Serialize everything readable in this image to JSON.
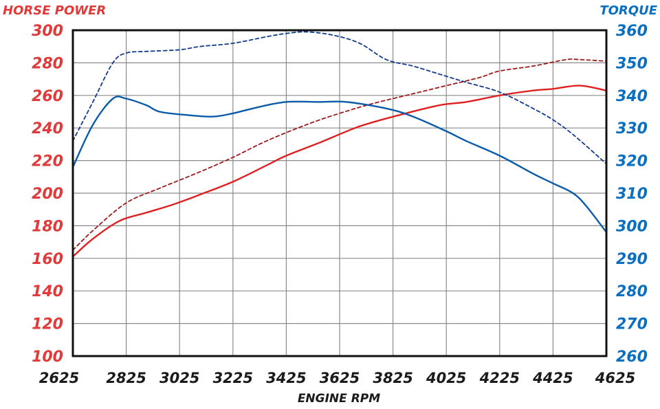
{
  "chart_data": {
    "type": "line",
    "left_axis_title": "HORSE POWER",
    "right_axis_title": "TORQUE",
    "xlabel": "ENGINE RPM",
    "x_ticks": [
      "2625",
      "2825",
      "3025",
      "3225",
      "3425",
      "3625",
      "3825",
      "4025",
      "4225",
      "4425",
      "4625"
    ],
    "x_range": [
      2625,
      4625
    ],
    "left_ticks": [
      "300",
      "280",
      "260",
      "240",
      "220",
      "200",
      "180",
      "160",
      "140",
      "120",
      "100"
    ],
    "left_range": [
      100,
      300
    ],
    "right_ticks": [
      "360",
      "350",
      "340",
      "330",
      "320",
      "310",
      "300",
      "290",
      "280",
      "270",
      "260"
    ],
    "right_range": [
      260,
      360
    ],
    "grid": true,
    "colors": {
      "horsepower": "#e02020",
      "horsepower_dashed": "#9c1818",
      "torque": "#0a5aaa",
      "torque_dashed": "#103a8c",
      "left_axis_text": "#e03a3a",
      "right_axis_text": "#0a6fc0"
    },
    "series": [
      {
        "axis": "left",
        "dashed": false,
        "color_key": "horsepower",
        "x": [
          2625,
          2700,
          2800,
          2900,
          3000,
          3100,
          3225,
          3350,
          3425,
          3550,
          3700,
          3850,
          4000,
          4100,
          4225,
          4350,
          4425,
          4525,
          4625
        ],
        "y": [
          161,
          172,
          183,
          188,
          193,
          199,
          207,
          217,
          223,
          231,
          241,
          248,
          254,
          256,
          260,
          263,
          264,
          266,
          263
        ]
      },
      {
        "axis": "left",
        "dashed": true,
        "color_key": "horsepower_dashed",
        "x": [
          2625,
          2700,
          2825,
          2950,
          3100,
          3225,
          3350,
          3500,
          3625,
          3750,
          3900,
          4025,
          4150,
          4225,
          4350,
          4475,
          4525,
          4625
        ],
        "y": [
          165,
          177,
          194,
          203,
          213,
          222,
          232,
          242,
          249,
          255,
          261,
          266,
          271,
          275,
          278,
          282,
          282,
          281
        ]
      },
      {
        "axis": "right",
        "dashed": false,
        "color_key": "torque",
        "x": [
          2625,
          2700,
          2775,
          2825,
          2900,
          2950,
          3050,
          3150,
          3225,
          3325,
          3425,
          3550,
          3650,
          3800,
          3900,
          4025,
          4100,
          4225,
          4350,
          4425,
          4500,
          4550,
          4625
        ],
        "y": [
          318,
          331,
          339,
          339,
          337,
          335,
          334,
          333.5,
          334.5,
          336.5,
          338,
          338,
          338,
          336,
          333.5,
          329,
          326,
          321.5,
          316,
          313,
          310,
          306,
          298
        ]
      },
      {
        "axis": "right",
        "dashed": true,
        "color_key": "torque_dashed",
        "x": [
          2625,
          2700,
          2775,
          2825,
          2900,
          3025,
          3100,
          3225,
          3350,
          3425,
          3500,
          3600,
          3700,
          3800,
          3900,
          4000,
          4100,
          4225,
          4350,
          4425,
          4500,
          4625
        ],
        "y": [
          326,
          338,
          350,
          353,
          353.5,
          354,
          355,
          356,
          358,
          359,
          359.5,
          358.5,
          356,
          351,
          349,
          346.5,
          344,
          341,
          336,
          332.5,
          328,
          319
        ]
      }
    ]
  }
}
